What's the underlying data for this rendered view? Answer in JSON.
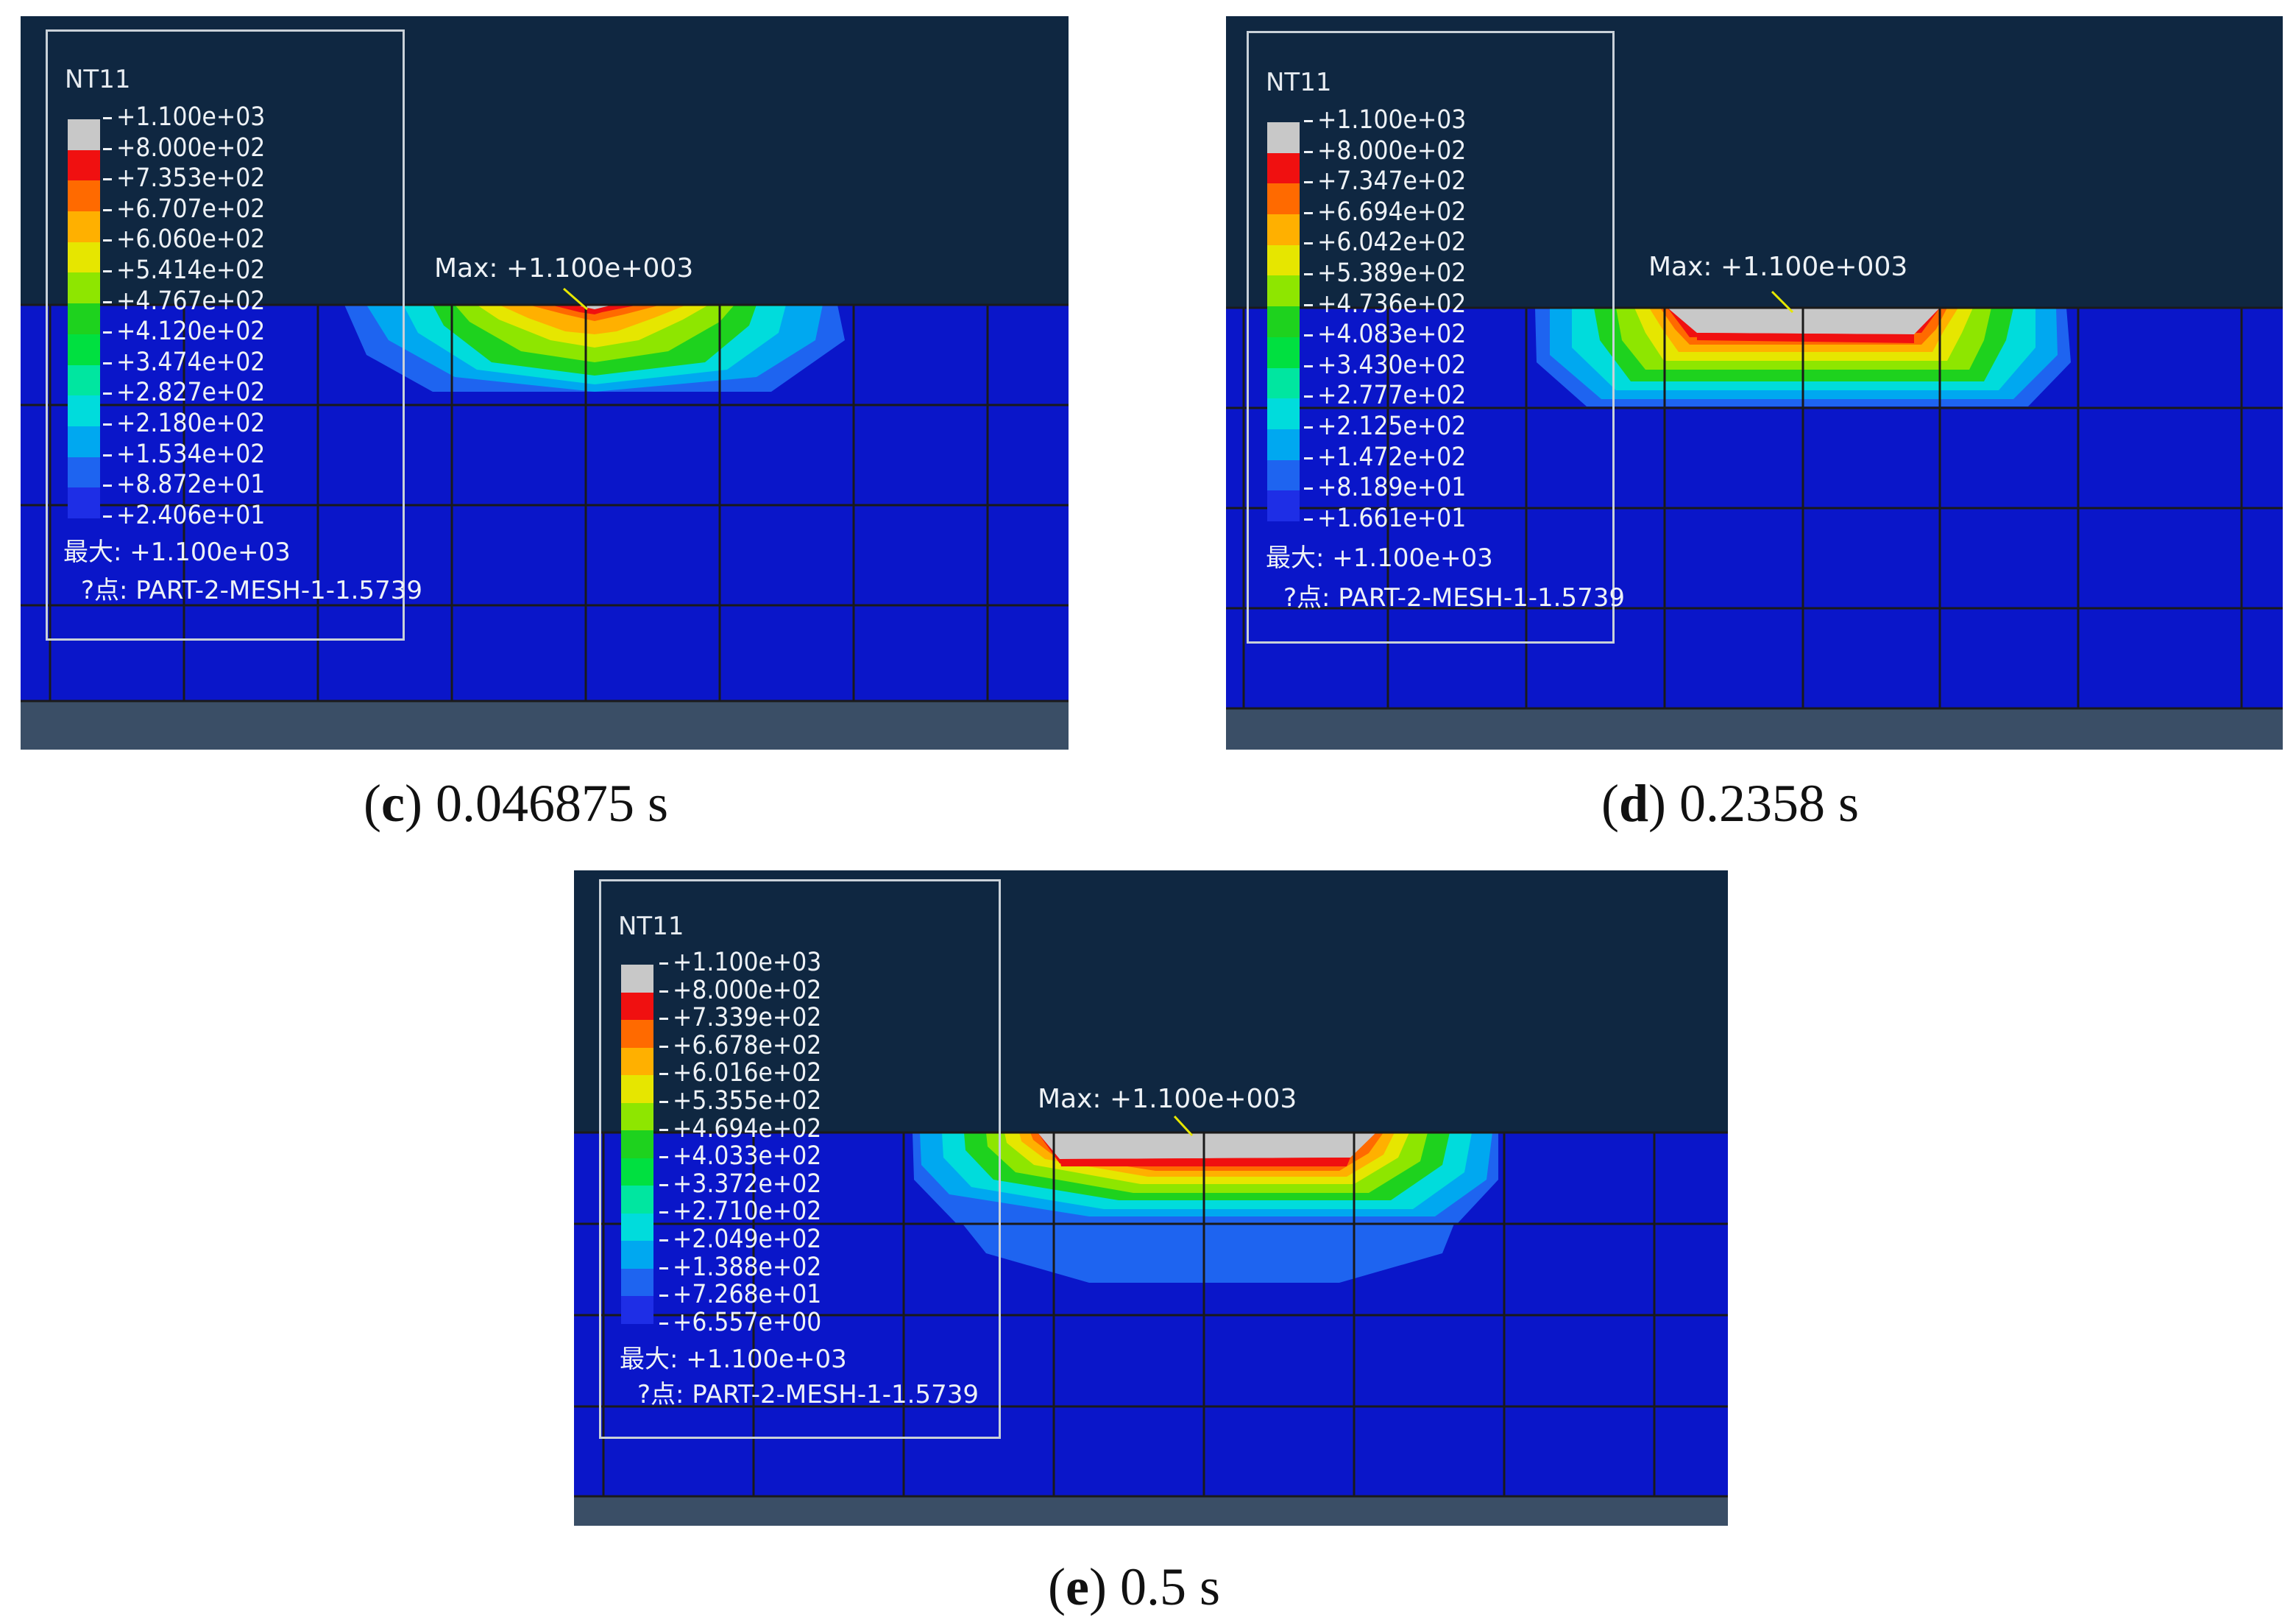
{
  "colors": {
    "background_top": "#0f2741",
    "mesh_blue": "#0a16c9",
    "max_grey": "#c8c8c8"
  },
  "legend_swatch_colors": [
    "#c8c8c8",
    "#f01010",
    "#ff6a00",
    "#ffb000",
    "#e6e600",
    "#8ee600",
    "#1ed21e",
    "#00e040",
    "#00e6a0",
    "#00dcdc",
    "#00a8f0",
    "#1e64f0",
    "#1e2ee6"
  ],
  "panels": [
    {
      "id": "c",
      "legend": {
        "title": "NT11",
        "values": [
          "+1.100e+03",
          "+8.000e+02",
          "+7.353e+02",
          "+6.707e+02",
          "+6.060e+02",
          "+5.414e+02",
          "+4.767e+02",
          "+4.120e+02",
          "+3.474e+02",
          "+2.827e+02",
          "+2.180e+02",
          "+1.534e+02",
          "+8.872e+01",
          "+2.406e+01"
        ],
        "max_line": "最大: +1.100e+03",
        "node_line": "?点: PART-2-MESH-1-1.5739"
      },
      "max_label": "Max: +1.100e+003",
      "caption": {
        "letter": "c",
        "text": " 0.046875 s",
        "open": "(",
        "close": ")"
      }
    },
    {
      "id": "d",
      "legend": {
        "title": "NT11",
        "values": [
          "+1.100e+03",
          "+8.000e+02",
          "+7.347e+02",
          "+6.694e+02",
          "+6.042e+02",
          "+5.389e+02",
          "+4.736e+02",
          "+4.083e+02",
          "+3.430e+02",
          "+2.777e+02",
          "+2.125e+02",
          "+1.472e+02",
          "+8.189e+01",
          "+1.661e+01"
        ],
        "max_line": "最大: +1.100e+03",
        "node_line": "?点: PART-2-MESH-1-1.5739"
      },
      "max_label": "Max: +1.100e+003",
      "caption": {
        "letter": "d",
        "text": " 0.2358 s",
        "open": "(",
        "close": ")"
      }
    },
    {
      "id": "e",
      "legend": {
        "title": "NT11",
        "values": [
          "+1.100e+03",
          "+8.000e+02",
          "+7.339e+02",
          "+6.678e+02",
          "+6.016e+02",
          "+5.355e+02",
          "+4.694e+02",
          "+4.033e+02",
          "+3.372e+02",
          "+2.710e+02",
          "+2.049e+02",
          "+1.388e+02",
          "+7.268e+01",
          "+6.557e+00"
        ],
        "max_line": "最大: +1.100e+03",
        "node_line": "?点: PART-2-MESH-1-1.5739"
      },
      "max_label": "Max: +1.100e+003",
      "caption": {
        "letter": "e",
        "text": " 0.5 s",
        "open": "(",
        "close": ")"
      }
    }
  ]
}
